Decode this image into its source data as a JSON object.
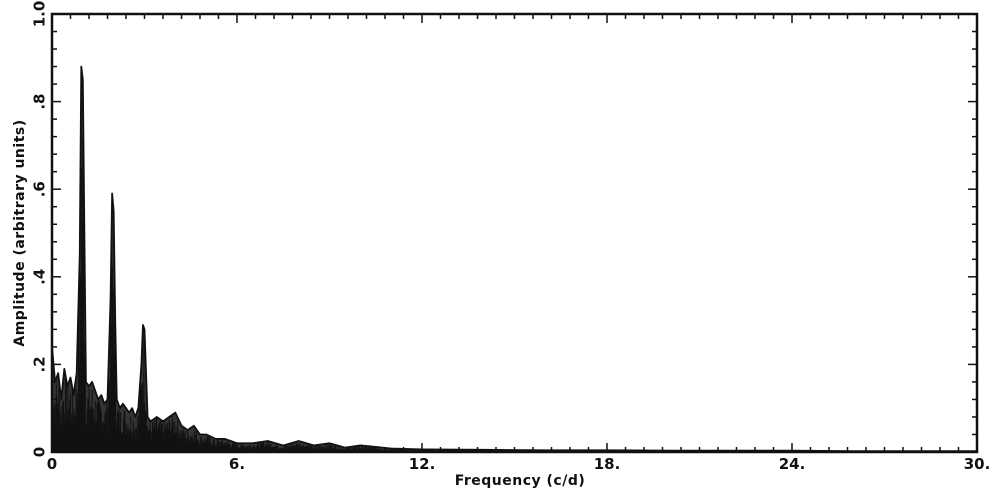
{
  "chart_data": {
    "type": "line",
    "xlabel": "Frequency (c/d)",
    "ylabel": "Amplitude (arbitrary units)",
    "xlim": [
      0,
      30
    ],
    "ylim": [
      0,
      1.0
    ],
    "x_tick_labels": [
      "0",
      "6.",
      "12.",
      "18.",
      "24.",
      "30."
    ],
    "y_tick_labels": [
      "0",
      ".2",
      ".4",
      ".6",
      ".8",
      "1.0"
    ],
    "x_ticks": [
      0,
      6,
      12,
      18,
      24,
      30
    ],
    "y_ticks": [
      0,
      0.2,
      0.4,
      0.6,
      0.8,
      1.0
    ],
    "grid": false,
    "legend": "none",
    "line_color": "#111111",
    "series": [
      {
        "x": [
          0.0,
          0.1,
          0.2,
          0.3,
          0.4,
          0.5,
          0.6,
          0.7,
          0.8,
          0.9,
          0.95,
          1.0,
          1.05,
          1.1,
          1.2,
          1.3,
          1.4,
          1.5,
          1.6,
          1.7,
          1.8,
          1.9,
          1.95,
          2.0,
          2.05,
          2.1,
          2.2,
          2.3,
          2.4,
          2.5,
          2.6,
          2.7,
          2.8,
          2.9,
          2.95,
          3.0,
          3.05,
          3.1,
          3.2,
          3.4,
          3.6,
          3.8,
          4.0,
          4.2,
          4.4,
          4.6,
          4.8,
          5.0,
          5.3,
          5.6,
          6.0,
          6.5,
          7.0,
          7.5,
          8.0,
          8.5,
          9.0,
          9.5,
          10.0,
          11.0,
          12.0,
          14.0,
          16.0,
          18.0,
          20.0,
          22.0,
          24.0,
          26.0,
          28.0,
          30.0
        ],
        "y": [
          0.24,
          0.16,
          0.18,
          0.12,
          0.19,
          0.15,
          0.17,
          0.13,
          0.18,
          0.45,
          0.88,
          0.85,
          0.5,
          0.16,
          0.15,
          0.16,
          0.14,
          0.12,
          0.13,
          0.11,
          0.12,
          0.35,
          0.59,
          0.55,
          0.3,
          0.12,
          0.1,
          0.11,
          0.1,
          0.09,
          0.1,
          0.08,
          0.1,
          0.2,
          0.29,
          0.28,
          0.18,
          0.08,
          0.07,
          0.08,
          0.07,
          0.08,
          0.09,
          0.06,
          0.05,
          0.06,
          0.04,
          0.04,
          0.03,
          0.03,
          0.02,
          0.02,
          0.025,
          0.015,
          0.025,
          0.015,
          0.02,
          0.01,
          0.015,
          0.008,
          0.006,
          0.005,
          0.004,
          0.004,
          0.003,
          0.003,
          0.003,
          0.002,
          0.002,
          0.002
        ]
      }
    ]
  }
}
